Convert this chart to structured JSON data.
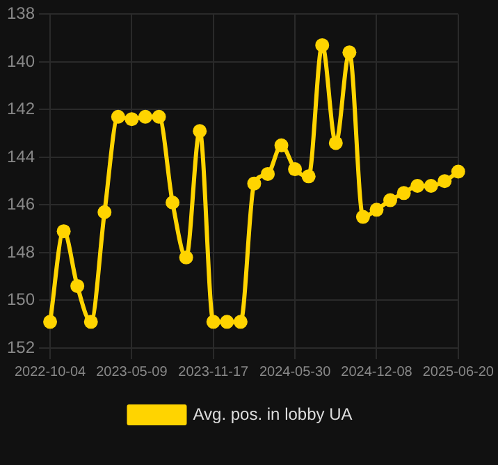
{
  "chart_data": {
    "type": "line",
    "categories": [
      "2022-10-04",
      null,
      null,
      null,
      null,
      null,
      "2023-05-09",
      null,
      null,
      null,
      null,
      null,
      "2023-11-17",
      null,
      null,
      null,
      null,
      null,
      "2024-05-30",
      null,
      null,
      null,
      null,
      null,
      "2024-12-08",
      null,
      null,
      null,
      null,
      null,
      "2025-06-20"
    ],
    "series": [
      {
        "name": "Avg. pos. in lobby UA",
        "color": "#ffd400",
        "values": [
          150.9,
          147.1,
          149.4,
          150.9,
          146.3,
          142.3,
          142.4,
          142.3,
          142.3,
          145.9,
          148.2,
          142.9,
          150.9,
          150.9,
          150.9,
          145.1,
          144.7,
          143.5,
          144.5,
          144.8,
          139.3,
          143.4,
          139.6,
          146.5,
          146.2,
          145.8,
          145.5,
          145.2,
          145.2,
          145.0,
          144.6
        ]
      }
    ],
    "ylim": [
      152,
      138
    ],
    "yticks": [
      138,
      140,
      142,
      144,
      146,
      148,
      150,
      152
    ],
    "grid": true,
    "legend": "bottom",
    "marker": "circle",
    "line_style": "solid"
  }
}
